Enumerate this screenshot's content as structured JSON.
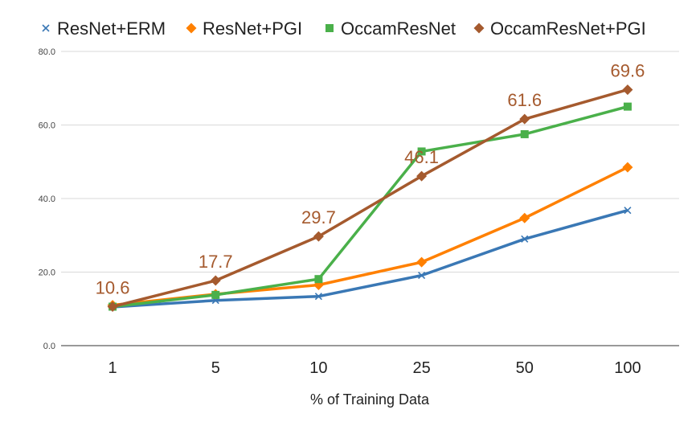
{
  "chart_data": {
    "type": "line",
    "title": "",
    "xlabel": "% of Training Data",
    "ylabel": "",
    "categories": [
      "1",
      "5",
      "10",
      "25",
      "50",
      "100"
    ],
    "ylim": [
      0,
      80
    ],
    "yticks": [
      "0.0",
      "20.0",
      "40.0",
      "60.0",
      "80.0"
    ],
    "grid": true,
    "legend_position": "top",
    "series": [
      {
        "name": "ResNet+ERM",
        "color": "#3a78b5",
        "marker": "x",
        "values": [
          10.5,
          12.3,
          13.4,
          19.1,
          29.0,
          36.8
        ]
      },
      {
        "name": "ResNet+PGI",
        "color": "#ff8000",
        "marker": "diamond",
        "values": [
          11.0,
          14.0,
          16.5,
          22.7,
          34.7,
          48.5
        ]
      },
      {
        "name": "OccamResNet",
        "color": "#4ab04a",
        "marker": "square",
        "values": [
          10.6,
          13.8,
          18.1,
          52.8,
          57.5,
          65.0
        ]
      },
      {
        "name": "OccamResNet+PGI",
        "color": "#a55a2e",
        "marker": "diamond",
        "values": [
          10.6,
          17.7,
          29.7,
          46.1,
          61.6,
          69.6
        ],
        "data_labels": [
          "10.6",
          "17.7",
          "29.7",
          "46.1",
          "61.6",
          "69.6"
        ]
      }
    ]
  }
}
